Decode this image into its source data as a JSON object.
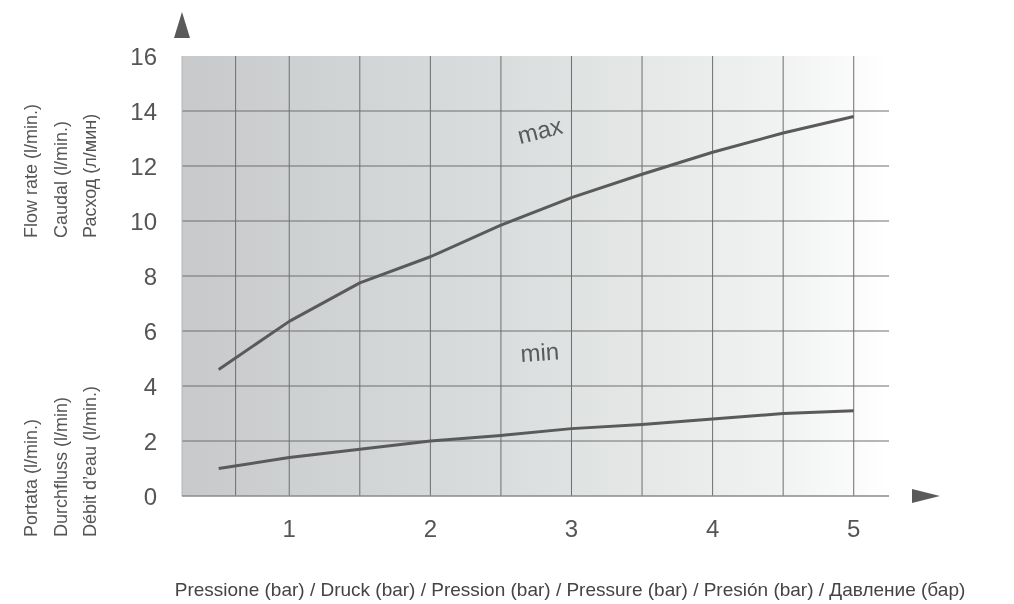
{
  "chart_data": {
    "type": "line",
    "xlabel": "Pressione (bar) / Druck (bar) / Pression (bar) / Pressure (bar) / Presión (bar) / Давление (бар)",
    "ylabel": "Flow rate (l/min.)\nCaudal (l/min.)\nРасход (л/мин)\nPortata (l/min.)\nDurchfluss (l/min)\nDébit d’eau (l/min.)",
    "x": [
      0.5,
      1,
      1.5,
      2,
      2.5,
      3,
      3.5,
      4,
      4.5,
      5
    ],
    "series": [
      {
        "name": "max",
        "color": "#5a5a5a",
        "values": [
          4.6,
          6.35,
          7.75,
          8.7,
          9.85,
          10.85,
          11.7,
          12.5,
          13.2,
          13.8
        ]
      },
      {
        "name": "min",
        "color": "#5a5a5a",
        "values": [
          1.0,
          1.4,
          1.7,
          2.0,
          2.2,
          2.45,
          2.6,
          2.8,
          3.0,
          3.1
        ]
      }
    ],
    "xlim": [
      0.24,
      5.25
    ],
    "ylim": [
      0,
      16
    ],
    "xticks": [
      {
        "value": 0.62,
        "label": null
      },
      1,
      {
        "value": 1.5,
        "label": null
      },
      2,
      {
        "value": 2.5,
        "label": null
      },
      3,
      {
        "value": 3.5,
        "label": null
      },
      4,
      {
        "value": 4.5,
        "label": null
      },
      5
    ],
    "yticks": [
      0,
      2,
      4,
      6,
      8,
      10,
      12,
      14,
      16
    ],
    "grid": true,
    "legend": false,
    "marker": "none",
    "line_style": "solid"
  }
}
